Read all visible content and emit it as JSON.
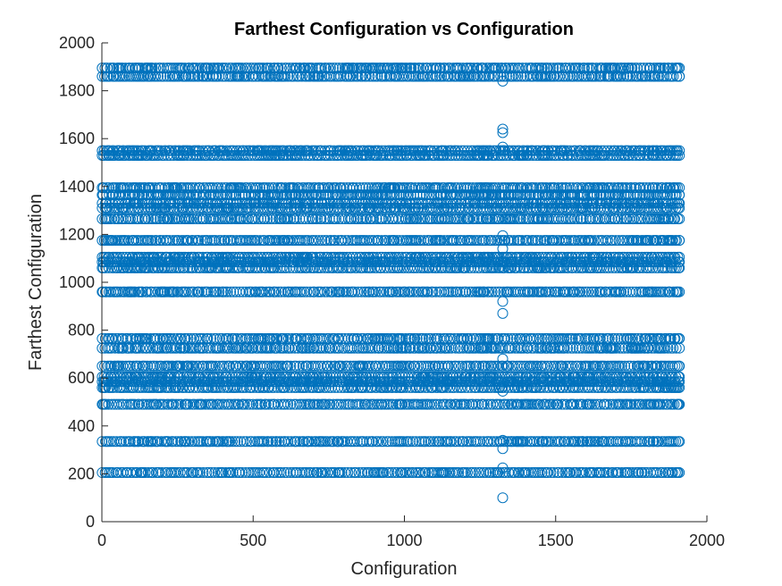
{
  "chart_data": {
    "type": "scatter",
    "title": "Farthest Configuration vs Configuration",
    "xlabel": "Configuration",
    "ylabel": "Farthest Configuration",
    "xlim": [
      0,
      2000
    ],
    "ylim": [
      0,
      2000
    ],
    "xticks": [
      0,
      500,
      1000,
      1500,
      2000
    ],
    "yticks": [
      0,
      200,
      400,
      600,
      800,
      1000,
      1200,
      1400,
      1600,
      1800,
      2000
    ],
    "grid": false,
    "marker": "circle",
    "color": "#0072BD",
    "x_range": [
      1,
      1909
    ],
    "bands": [
      {
        "y": 1895,
        "x_start": 1,
        "x_end": 1909
      },
      {
        "y": 1860,
        "x_start": 1,
        "x_end": 1909
      },
      {
        "y": 1550,
        "x_start": 1,
        "x_end": 1909
      },
      {
        "y": 1530,
        "x_start": 1,
        "x_end": 1909
      },
      {
        "y": 1395,
        "x_start": 1,
        "x_end": 1909
      },
      {
        "y": 1365,
        "x_start": 1,
        "x_end": 1909
      },
      {
        "y": 1330,
        "x_start": 1,
        "x_end": 1909
      },
      {
        "y": 1310,
        "x_start": 1,
        "x_end": 1909
      },
      {
        "y": 1265,
        "x_start": 1,
        "x_end": 1909
      },
      {
        "y": 1175,
        "x_start": 1,
        "x_end": 1909
      },
      {
        "y": 1105,
        "x_start": 1,
        "x_end": 1909
      },
      {
        "y": 1085,
        "x_start": 1,
        "x_end": 1909
      },
      {
        "y": 1060,
        "x_start": 1,
        "x_end": 1909
      },
      {
        "y": 960,
        "x_start": 1,
        "x_end": 1909
      },
      {
        "y": 765,
        "x_start": 1,
        "x_end": 1909
      },
      {
        "y": 725,
        "x_start": 1,
        "x_end": 1909
      },
      {
        "y": 650,
        "x_start": 1,
        "x_end": 1909
      },
      {
        "y": 605,
        "x_start": 1,
        "x_end": 1909
      },
      {
        "y": 585,
        "x_start": 1,
        "x_end": 1909
      },
      {
        "y": 560,
        "x_start": 1,
        "x_end": 1909
      },
      {
        "y": 490,
        "x_start": 1,
        "x_end": 1909
      },
      {
        "y": 335,
        "x_start": 1,
        "x_end": 1909
      },
      {
        "y": 205,
        "x_start": 1,
        "x_end": 1909
      }
    ],
    "points": [
      {
        "x": 1325,
        "y": 1840
      },
      {
        "x": 1325,
        "y": 1640
      },
      {
        "x": 1325,
        "y": 1625
      },
      {
        "x": 1325,
        "y": 1565
      },
      {
        "x": 1325,
        "y": 1195
      },
      {
        "x": 1325,
        "y": 1140
      },
      {
        "x": 1325,
        "y": 920
      },
      {
        "x": 1325,
        "y": 870
      },
      {
        "x": 1325,
        "y": 680
      },
      {
        "x": 1325,
        "y": 545
      },
      {
        "x": 1325,
        "y": 340
      },
      {
        "x": 1325,
        "y": 305
      },
      {
        "x": 1325,
        "y": 225
      },
      {
        "x": 1325,
        "y": 100
      }
    ]
  }
}
